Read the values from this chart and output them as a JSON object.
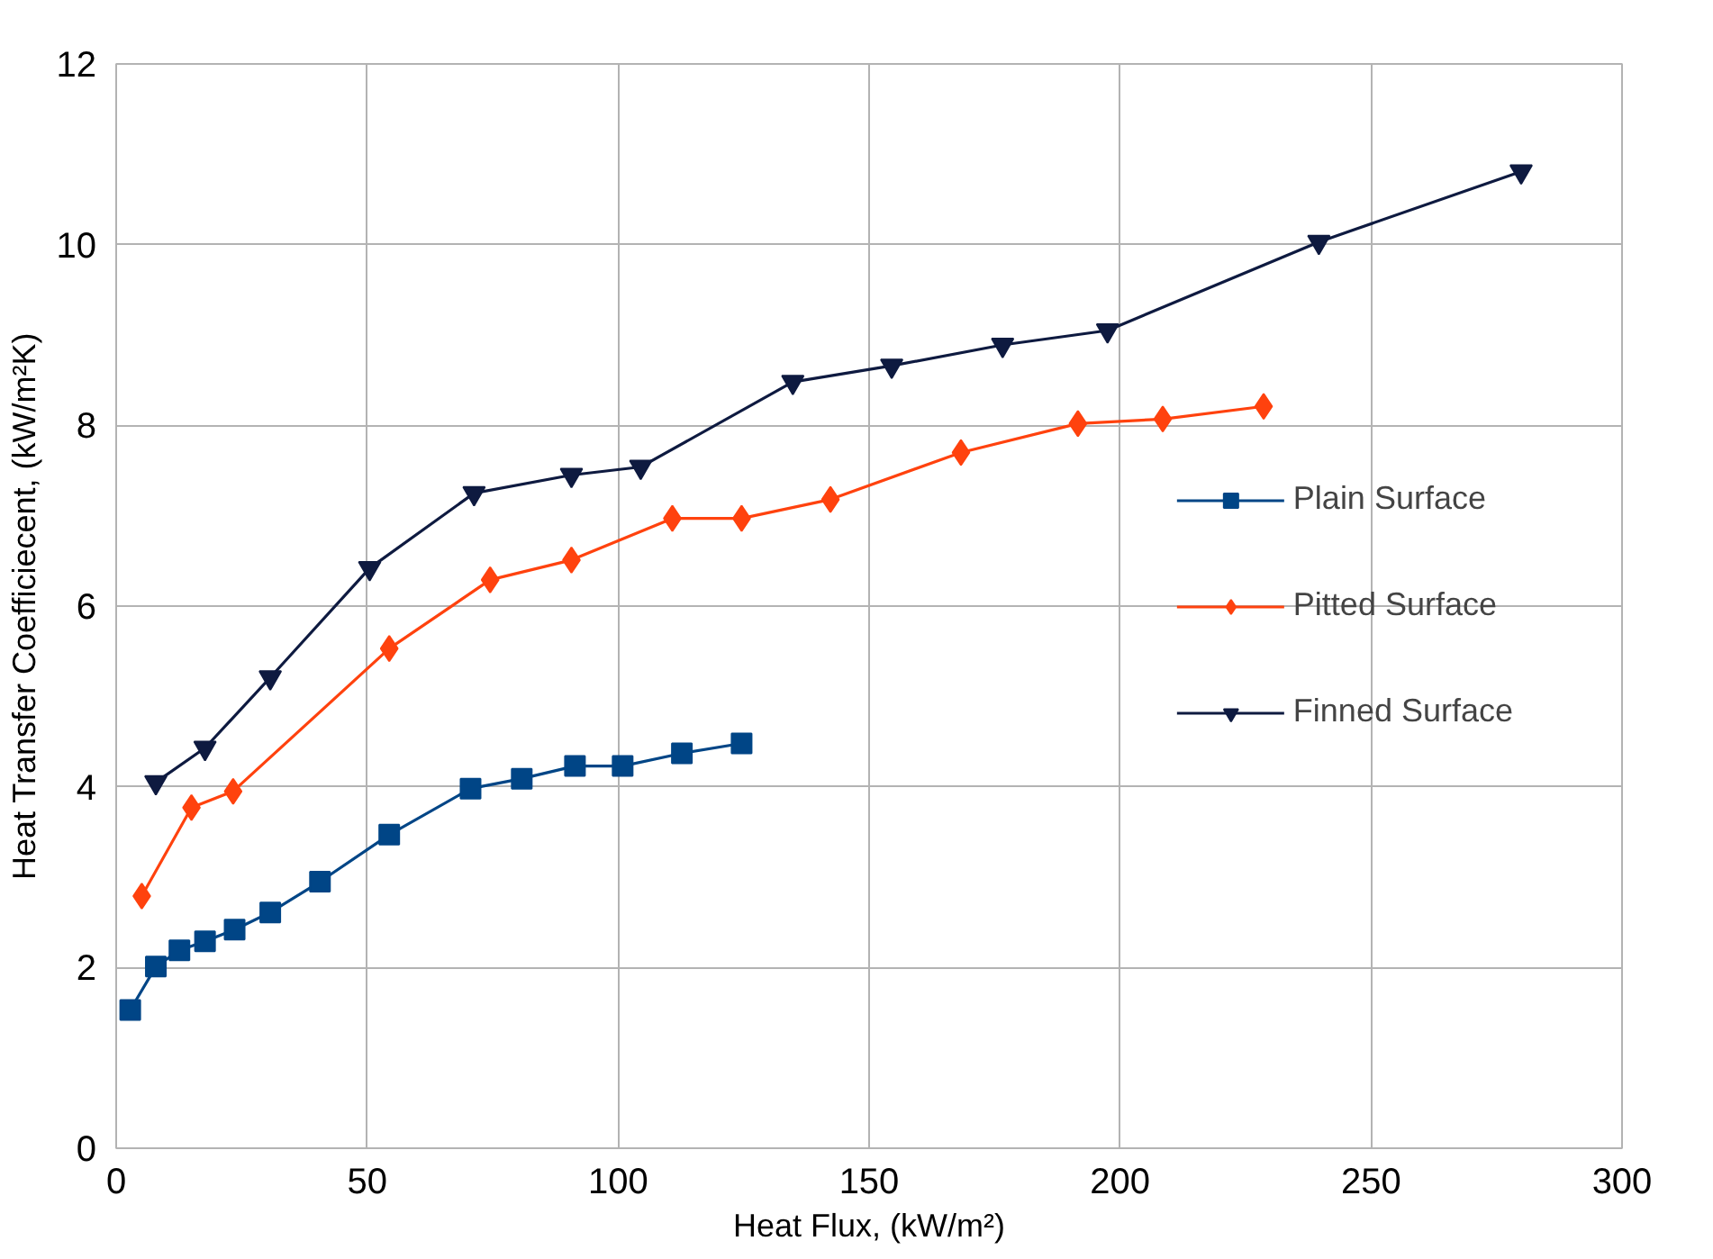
{
  "chart_data": {
    "type": "line",
    "xlabel": "Heat Flux, (kW/m²)",
    "ylabel": "Heat Transfer Coefficiecent, (kW/m²K)",
    "xlim": [
      0,
      300
    ],
    "ylim": [
      0,
      12
    ],
    "xticks": [
      0,
      50,
      100,
      150,
      200,
      250,
      300
    ],
    "yticks": [
      0,
      2,
      4,
      6,
      8,
      10,
      12
    ],
    "grid": true,
    "legend": "right",
    "series": [
      {
        "name": "Plain Surface",
        "color": "#004586",
        "marker": "square",
        "x": [
          2.8,
          7.9,
          12.6,
          17.7,
          23.6,
          30.7,
          40.6,
          54.4,
          70.6,
          80.8,
          91.4,
          100.9,
          112.7,
          124.6
        ],
        "values": [
          1.53,
          2.01,
          2.19,
          2.29,
          2.42,
          2.61,
          2.95,
          3.47,
          3.98,
          4.09,
          4.23,
          4.23,
          4.37,
          4.48
        ]
      },
      {
        "name": "Pitted Surface",
        "color": "#ff420e",
        "marker": "diamond",
        "x": [
          5.1,
          15,
          23.3,
          54.4,
          74.5,
          90.7,
          110.8,
          124.6,
          142.3,
          168.3,
          191.6,
          208.5,
          228.6
        ],
        "values": [
          2.79,
          3.77,
          3.95,
          5.53,
          6.29,
          6.51,
          6.97,
          6.97,
          7.18,
          7.7,
          8.02,
          8.07,
          8.21
        ]
      },
      {
        "name": "Finned Surface",
        "color": "#0e1a40",
        "marker": "triangle",
        "x": [
          7.9,
          17.7,
          30.7,
          50.5,
          71.3,
          90.7,
          104.5,
          134.8,
          154.5,
          176.6,
          197.5,
          239.6,
          279.9
        ],
        "values": [
          4.05,
          4.43,
          5.21,
          6.42,
          7.25,
          7.45,
          7.54,
          8.48,
          8.66,
          8.89,
          9.05,
          10.03,
          10.81
        ]
      }
    ]
  }
}
